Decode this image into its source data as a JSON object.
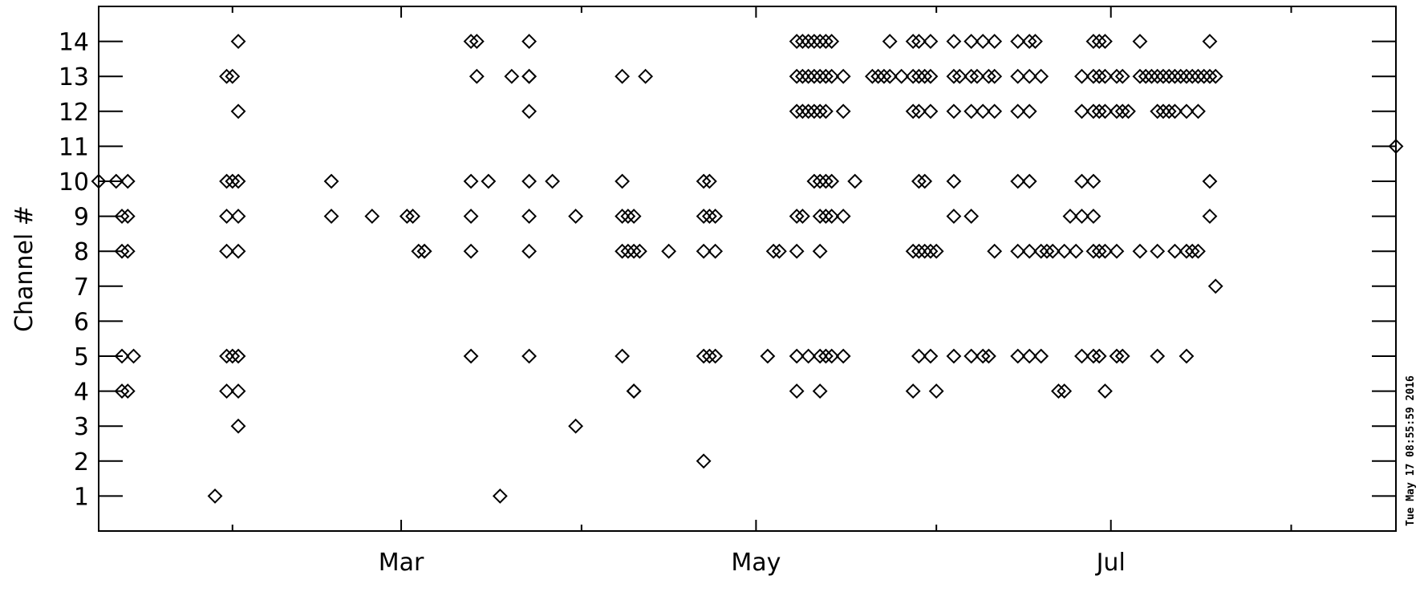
{
  "chart_data": {
    "type": "scatter",
    "marker": "open-diamond",
    "xlabel": "",
    "ylabel": "Channel #",
    "x_ticks": [
      {
        "date": "2016-03-01",
        "label": "Mar"
      },
      {
        "date": "2016-05-01",
        "label": "May"
      },
      {
        "date": "2016-07-01",
        "label": "Jul"
      }
    ],
    "x_minor_ticks": [
      "2016-02-01",
      "2016-04-01",
      "2016-06-01",
      "2016-08-01"
    ],
    "xlim": [
      "2016-01-09",
      "2016-08-19"
    ],
    "y_ticks": [
      1,
      2,
      3,
      4,
      5,
      6,
      7,
      8,
      9,
      10,
      11,
      12,
      13,
      14
    ],
    "ylim": [
      0,
      15
    ],
    "grid": false,
    "timestamp": "Tue May 17 08:55:59 2016",
    "points": [
      [
        "2016-01-09",
        10
      ],
      [
        "2016-01-12",
        10
      ],
      [
        "2016-01-14",
        10
      ],
      [
        "2016-01-13",
        9
      ],
      [
        "2016-01-14",
        9
      ],
      [
        "2016-01-13",
        8
      ],
      [
        "2016-01-14",
        8
      ],
      [
        "2016-01-13",
        5
      ],
      [
        "2016-01-15",
        5
      ],
      [
        "2016-01-13",
        4
      ],
      [
        "2016-01-14",
        4
      ],
      [
        "2016-01-29",
        1
      ],
      [
        "2016-02-02",
        14
      ],
      [
        "2016-01-31",
        13
      ],
      [
        "2016-02-01",
        13
      ],
      [
        "2016-02-02",
        12
      ],
      [
        "2016-01-31",
        10
      ],
      [
        "2016-02-01",
        10
      ],
      [
        "2016-02-02",
        10
      ],
      [
        "2016-01-31",
        9
      ],
      [
        "2016-02-02",
        9
      ],
      [
        "2016-01-31",
        8
      ],
      [
        "2016-02-02",
        8
      ],
      [
        "2016-01-31",
        5
      ],
      [
        "2016-02-01",
        5
      ],
      [
        "2016-02-02",
        5
      ],
      [
        "2016-01-31",
        4
      ],
      [
        "2016-02-02",
        4
      ],
      [
        "2016-02-02",
        3
      ],
      [
        "2016-02-18",
        10
      ],
      [
        "2016-02-18",
        9
      ],
      [
        "2016-02-25",
        9
      ],
      [
        "2016-03-02",
        9
      ],
      [
        "2016-03-03",
        9
      ],
      [
        "2016-03-04",
        8
      ],
      [
        "2016-03-05",
        8
      ],
      [
        "2016-03-05",
        8
      ],
      [
        "2016-03-13",
        14
      ],
      [
        "2016-03-14",
        14
      ],
      [
        "2016-03-14",
        13
      ],
      [
        "2016-03-20",
        13
      ],
      [
        "2016-03-23",
        13
      ],
      [
        "2016-03-13",
        10
      ],
      [
        "2016-03-16",
        10
      ],
      [
        "2016-03-13",
        9
      ],
      [
        "2016-03-13",
        8
      ],
      [
        "2016-03-13",
        5
      ],
      [
        "2016-03-18",
        1
      ],
      [
        "2016-03-23",
        14
      ],
      [
        "2016-03-23",
        13
      ],
      [
        "2016-03-23",
        12
      ],
      [
        "2016-03-23",
        10
      ],
      [
        "2016-03-27",
        10
      ],
      [
        "2016-03-23",
        9
      ],
      [
        "2016-03-23",
        8
      ],
      [
        "2016-03-23",
        5
      ],
      [
        "2016-03-31",
        9
      ],
      [
        "2016-03-31",
        3
      ],
      [
        "2016-04-08",
        13
      ],
      [
        "2016-04-12",
        13
      ],
      [
        "2016-04-08",
        10
      ],
      [
        "2016-04-08",
        9
      ],
      [
        "2016-04-09",
        9
      ],
      [
        "2016-04-10",
        9
      ],
      [
        "2016-04-08",
        8
      ],
      [
        "2016-04-09",
        8
      ],
      [
        "2016-04-10",
        8
      ],
      [
        "2016-04-11",
        8
      ],
      [
        "2016-04-16",
        8
      ],
      [
        "2016-04-08",
        5
      ],
      [
        "2016-04-10",
        4
      ],
      [
        "2016-04-10",
        4
      ],
      [
        "2016-04-22",
        10
      ],
      [
        "2016-04-23",
        10
      ],
      [
        "2016-04-22",
        9
      ],
      [
        "2016-04-23",
        9
      ],
      [
        "2016-04-24",
        9
      ],
      [
        "2016-04-22",
        8
      ],
      [
        "2016-04-24",
        8
      ],
      [
        "2016-04-22",
        5
      ],
      [
        "2016-04-23",
        5
      ],
      [
        "2016-04-24",
        5
      ],
      [
        "2016-04-22",
        2
      ],
      [
        "2016-05-04",
        8
      ],
      [
        "2016-05-05",
        8
      ],
      [
        "2016-05-03",
        5
      ],
      [
        "2016-05-08",
        14
      ],
      [
        "2016-05-09",
        14
      ],
      [
        "2016-05-10",
        14
      ],
      [
        "2016-05-11",
        14
      ],
      [
        "2016-05-12",
        14
      ],
      [
        "2016-05-13",
        14
      ],
      [
        "2016-05-14",
        14
      ],
      [
        "2016-05-08",
        13
      ],
      [
        "2016-05-09",
        13
      ],
      [
        "2016-05-10",
        13
      ],
      [
        "2016-05-11",
        13
      ],
      [
        "2016-05-12",
        13
      ],
      [
        "2016-05-13",
        13
      ],
      [
        "2016-05-14",
        13
      ],
      [
        "2016-05-16",
        13
      ],
      [
        "2016-05-08",
        12
      ],
      [
        "2016-05-09",
        12
      ],
      [
        "2016-05-10",
        12
      ],
      [
        "2016-05-11",
        12
      ],
      [
        "2016-05-12",
        12
      ],
      [
        "2016-05-13",
        12
      ],
      [
        "2016-05-16",
        12
      ],
      [
        "2016-05-11",
        10
      ],
      [
        "2016-05-12",
        10
      ],
      [
        "2016-05-13",
        10
      ],
      [
        "2016-05-14",
        10
      ],
      [
        "2016-05-18",
        10
      ],
      [
        "2016-05-08",
        9
      ],
      [
        "2016-05-09",
        9
      ],
      [
        "2016-05-12",
        9
      ],
      [
        "2016-05-13",
        9
      ],
      [
        "2016-05-14",
        9
      ],
      [
        "2016-05-16",
        9
      ],
      [
        "2016-05-08",
        8
      ],
      [
        "2016-05-12",
        8
      ],
      [
        "2016-05-08",
        5
      ],
      [
        "2016-05-10",
        5
      ],
      [
        "2016-05-12",
        5
      ],
      [
        "2016-05-13",
        5
      ],
      [
        "2016-05-14",
        5
      ],
      [
        "2016-05-16",
        5
      ],
      [
        "2016-05-08",
        4
      ],
      [
        "2016-05-12",
        4
      ],
      [
        "2016-05-24",
        14
      ],
      [
        "2016-05-28",
        14
      ],
      [
        "2016-05-29",
        14
      ],
      [
        "2016-05-31",
        14
      ],
      [
        "2016-05-21",
        13
      ],
      [
        "2016-05-22",
        13
      ],
      [
        "2016-05-23",
        13
      ],
      [
        "2016-05-24",
        13
      ],
      [
        "2016-05-26",
        13
      ],
      [
        "2016-05-28",
        13
      ],
      [
        "2016-05-29",
        13
      ],
      [
        "2016-05-30",
        13
      ],
      [
        "2016-05-31",
        13
      ],
      [
        "2016-05-28",
        12
      ],
      [
        "2016-05-29",
        12
      ],
      [
        "2016-05-31",
        12
      ],
      [
        "2016-05-29",
        10
      ],
      [
        "2016-05-30",
        10
      ],
      [
        "2016-05-28",
        8
      ],
      [
        "2016-05-29",
        8
      ],
      [
        "2016-05-30",
        8
      ],
      [
        "2016-05-31",
        8
      ],
      [
        "2016-06-01",
        8
      ],
      [
        "2016-05-29",
        5
      ],
      [
        "2016-05-31",
        5
      ],
      [
        "2016-05-28",
        4
      ],
      [
        "2016-06-01",
        4
      ],
      [
        "2016-06-04",
        14
      ],
      [
        "2016-06-07",
        14
      ],
      [
        "2016-06-09",
        14
      ],
      [
        "2016-06-11",
        14
      ],
      [
        "2016-06-04",
        13
      ],
      [
        "2016-06-05",
        13
      ],
      [
        "2016-06-07",
        13
      ],
      [
        "2016-06-08",
        13
      ],
      [
        "2016-06-10",
        13
      ],
      [
        "2016-06-11",
        13
      ],
      [
        "2016-06-04",
        12
      ],
      [
        "2016-06-07",
        12
      ],
      [
        "2016-06-09",
        12
      ],
      [
        "2016-06-11",
        12
      ],
      [
        "2016-06-04",
        10
      ],
      [
        "2016-06-04",
        9
      ],
      [
        "2016-06-07",
        9
      ],
      [
        "2016-06-04",
        5
      ],
      [
        "2016-06-07",
        5
      ],
      [
        "2016-06-09",
        5
      ],
      [
        "2016-06-10",
        5
      ],
      [
        "2016-06-11",
        8
      ],
      [
        "2016-06-15",
        14
      ],
      [
        "2016-06-17",
        14
      ],
      [
        "2016-06-18",
        14
      ],
      [
        "2016-06-15",
        13
      ],
      [
        "2016-06-17",
        13
      ],
      [
        "2016-06-19",
        13
      ],
      [
        "2016-06-15",
        12
      ],
      [
        "2016-06-17",
        12
      ],
      [
        "2016-06-15",
        10
      ],
      [
        "2016-06-17",
        10
      ],
      [
        "2016-06-15",
        8
      ],
      [
        "2016-06-17",
        8
      ],
      [
        "2016-06-19",
        8
      ],
      [
        "2016-06-20",
        8
      ],
      [
        "2016-06-21",
        8
      ],
      [
        "2016-06-23",
        8
      ],
      [
        "2016-06-15",
        5
      ],
      [
        "2016-06-17",
        5
      ],
      [
        "2016-06-19",
        5
      ],
      [
        "2016-06-22",
        4
      ],
      [
        "2016-06-23",
        4
      ],
      [
        "2016-06-24",
        9
      ],
      [
        "2016-06-25",
        8
      ],
      [
        "2016-06-26",
        10
      ],
      [
        "2016-06-26",
        5
      ],
      [
        "2016-06-26",
        13
      ],
      [
        "2016-06-26",
        12
      ],
      [
        "2016-06-28",
        14
      ],
      [
        "2016-06-29",
        14
      ],
      [
        "2016-06-30",
        14
      ],
      [
        "2016-06-28",
        13
      ],
      [
        "2016-06-29",
        13
      ],
      [
        "2016-06-30",
        13
      ],
      [
        "2016-06-28",
        12
      ],
      [
        "2016-06-29",
        12
      ],
      [
        "2016-06-30",
        12
      ],
      [
        "2016-06-28",
        10
      ],
      [
        "2016-06-28",
        9
      ],
      [
        "2016-06-26",
        9
      ],
      [
        "2016-06-28",
        8
      ],
      [
        "2016-06-29",
        8
      ],
      [
        "2016-06-30",
        8
      ],
      [
        "2016-06-28",
        5
      ],
      [
        "2016-06-29",
        5
      ],
      [
        "2016-06-30",
        4
      ],
      [
        "2016-07-02",
        13
      ],
      [
        "2016-07-03",
        13
      ],
      [
        "2016-07-02",
        12
      ],
      [
        "2016-07-03",
        12
      ],
      [
        "2016-07-04",
        12
      ],
      [
        "2016-07-02",
        5
      ],
      [
        "2016-07-03",
        5
      ],
      [
        "2016-07-02",
        8
      ],
      [
        "2016-07-06",
        14
      ],
      [
        "2016-07-06",
        8
      ],
      [
        "2016-07-09",
        5
      ],
      [
        "2016-07-06",
        13
      ],
      [
        "2016-07-07",
        13
      ],
      [
        "2016-07-08",
        13
      ],
      [
        "2016-07-09",
        13
      ],
      [
        "2016-07-10",
        13
      ],
      [
        "2016-07-11",
        13
      ],
      [
        "2016-07-12",
        13
      ],
      [
        "2016-07-13",
        13
      ],
      [
        "2016-07-14",
        13
      ],
      [
        "2016-07-15",
        13
      ],
      [
        "2016-07-16",
        13
      ],
      [
        "2016-07-17",
        13
      ],
      [
        "2016-07-18",
        13
      ],
      [
        "2016-07-19",
        13
      ],
      [
        "2016-07-09",
        12
      ],
      [
        "2016-07-10",
        12
      ],
      [
        "2016-07-11",
        12
      ],
      [
        "2016-07-12",
        12
      ],
      [
        "2016-07-14",
        12
      ],
      [
        "2016-07-16",
        12
      ],
      [
        "2016-07-09",
        8
      ],
      [
        "2016-07-12",
        8
      ],
      [
        "2016-07-14",
        8
      ],
      [
        "2016-07-15",
        8
      ],
      [
        "2016-07-16",
        8
      ],
      [
        "2016-07-14",
        5
      ],
      [
        "2016-07-18",
        14
      ],
      [
        "2016-07-18",
        10
      ],
      [
        "2016-07-18",
        9
      ],
      [
        "2016-07-19",
        7
      ],
      [
        "2016-08-19",
        11
      ]
    ]
  }
}
